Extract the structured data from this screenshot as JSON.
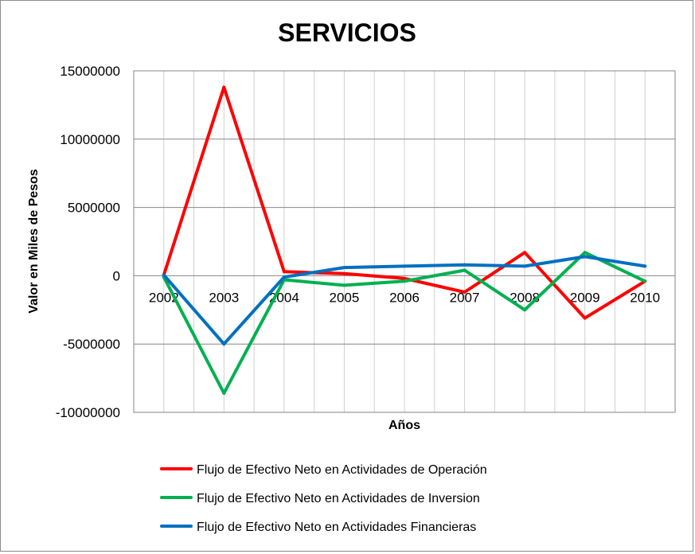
{
  "chart_data": {
    "type": "line",
    "title": "SERVICIOS",
    "xlabel": "Años",
    "ylabel": "Valor en Miles de Pesos",
    "categories": [
      "2002",
      "2003",
      "2004",
      "2005",
      "2006",
      "2007",
      "2008",
      "2009",
      "2010"
    ],
    "ylim": [
      -10000000,
      15000000
    ],
    "yticks": [
      15000000,
      10000000,
      5000000,
      0,
      -5000000,
      -10000000
    ],
    "grid": true,
    "legend_position": "bottom",
    "series": [
      {
        "name": "Flujo de Efectivo Neto en Actividades de Operación",
        "color": "#ff0000",
        "values": [
          50000,
          13800000,
          300000,
          150000,
          -200000,
          -1200000,
          1700000,
          -3100000,
          -400000
        ]
      },
      {
        "name": "Flujo de Efectivo Neto en Actividades de Inversion",
        "color": "#00b050",
        "values": [
          -100000,
          -8600000,
          -300000,
          -700000,
          -400000,
          400000,
          -2500000,
          1700000,
          -400000
        ]
      },
      {
        "name": "Flujo de Efectivo Neto en Actividades Financieras",
        "color": "#0070c0",
        "values": [
          50000,
          -5000000,
          -100000,
          600000,
          700000,
          800000,
          700000,
          1400000,
          700000
        ]
      }
    ]
  }
}
